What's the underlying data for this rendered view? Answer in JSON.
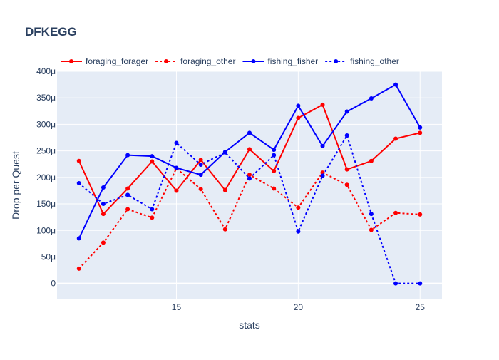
{
  "chart_data": {
    "type": "line",
    "title": "DFKEGG",
    "xlabel": "stats",
    "ylabel": "Drop per Quest",
    "xlim": [
      10.1,
      25.9
    ],
    "ylim": [
      -3e-05,
      0.0004
    ],
    "x_ticks": [
      15,
      20,
      25
    ],
    "y_ticks": [
      0,
      5e-05,
      0.0001,
      0.00015,
      0.0002,
      0.00025,
      0.0003,
      0.00035,
      0.0004
    ],
    "y_tick_labels": [
      "0",
      "50μ",
      "100μ",
      "150μ",
      "200μ",
      "250μ",
      "300μ",
      "350μ",
      "400μ"
    ],
    "grid": true,
    "legend_position": "top-left horizontal",
    "x": [
      11,
      12,
      13,
      14,
      15,
      16,
      17,
      18,
      19,
      20,
      21,
      22,
      23,
      24,
      25
    ],
    "series": [
      {
        "name": "foraging_forager",
        "color": "#ff0000",
        "dash": "solid",
        "values": [
          0.000231,
          0.000131,
          0.000179,
          0.00023,
          0.000175,
          0.000233,
          0.000176,
          0.000253,
          0.000212,
          0.000312,
          0.000337,
          0.000215,
          0.000231,
          0.000273,
          0.000284
        ]
      },
      {
        "name": "foraging_other",
        "color": "#ff0000",
        "dash": "dot",
        "values": [
          2.8e-05,
          7.7e-05,
          0.00014,
          0.000124,
          0.000217,
          0.000178,
          0.000102,
          0.000205,
          0.000179,
          0.000143,
          0.000209,
          0.000186,
          0.000101,
          0.000133,
          0.00013
        ]
      },
      {
        "name": "fishing_fisher",
        "color": "#0000ff",
        "dash": "solid",
        "values": [
          8.5e-05,
          0.000181,
          0.000242,
          0.00024,
          0.000218,
          0.000205,
          0.000248,
          0.000284,
          0.000252,
          0.000335,
          0.000259,
          0.000324,
          0.000349,
          0.000375,
          0.000294
        ]
      },
      {
        "name": "fishing_other",
        "color": "#0000ff",
        "dash": "dot",
        "values": [
          0.000189,
          0.00015,
          0.000167,
          0.00014,
          0.000265,
          0.000224,
          0.000247,
          0.000198,
          0.000242,
          9.8e-05,
          0.000203,
          0.000279,
          0.000131,
          0.0,
          0.0
        ]
      }
    ]
  }
}
